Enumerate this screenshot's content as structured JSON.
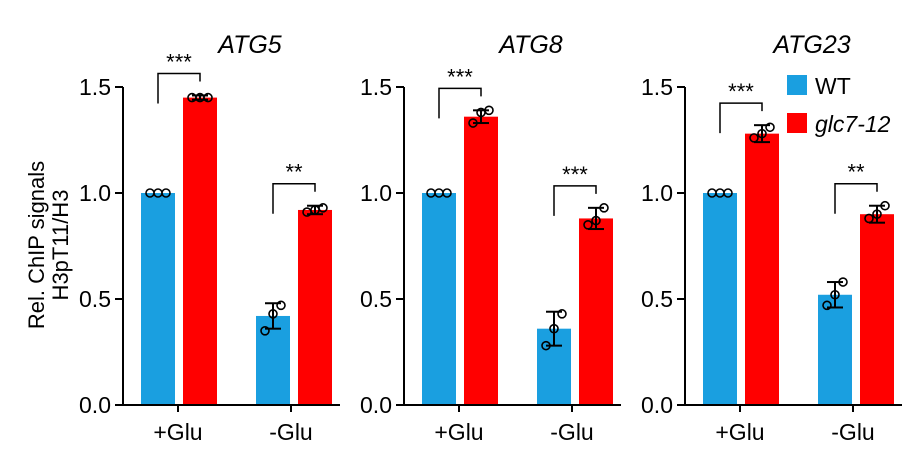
{
  "colors": {
    "WT": "#1a9fe0",
    "glc7-12": "#ff0000",
    "axis": "#000000"
  },
  "y_label_lines": [
    "Rel. ChIP signals",
    "H3pT11/H3"
  ],
  "legend": [
    {
      "name": "WT",
      "italic": false,
      "color_key": "WT"
    },
    {
      "name": "glc7-12",
      "italic": true,
      "color_key": "glc7-12"
    }
  ],
  "chart_data": [
    {
      "type": "bar",
      "title": "ATG5",
      "categories": [
        "+Glu",
        "-Glu"
      ],
      "ylim": [
        0,
        1.5
      ],
      "yticks": [
        "0.0",
        "0.5",
        "1.0",
        "1.5"
      ],
      "series": [
        {
          "name": "WT",
          "values": [
            1.0,
            0.42
          ],
          "errors": [
            0.0,
            0.06
          ],
          "points": [
            [
              1.0,
              1.0,
              1.0
            ],
            [
              0.35,
              0.43,
              0.47
            ]
          ]
        },
        {
          "name": "glc7-12",
          "values": [
            1.45,
            0.92
          ],
          "errors": [
            0.01,
            0.02
          ],
          "points": [
            [
              1.45,
              1.45,
              1.45
            ],
            [
              0.91,
              0.92,
              0.93
            ]
          ]
        }
      ],
      "significance": [
        "***",
        "**"
      ]
    },
    {
      "type": "bar",
      "title": "ATG8",
      "categories": [
        "+Glu",
        "-Glu"
      ],
      "ylim": [
        0,
        1.5
      ],
      "yticks": [
        "0.0",
        "0.5",
        "1.0",
        "1.5"
      ],
      "series": [
        {
          "name": "WT",
          "values": [
            1.0,
            0.36
          ],
          "errors": [
            0.0,
            0.08
          ],
          "points": [
            [
              1.0,
              1.0,
              1.0
            ],
            [
              0.28,
              0.36,
              0.43
            ]
          ]
        },
        {
          "name": "glc7-12",
          "values": [
            1.36,
            0.88
          ],
          "errors": [
            0.03,
            0.05
          ],
          "points": [
            [
              1.33,
              1.38,
              1.39
            ],
            [
              0.85,
              0.87,
              0.93
            ]
          ]
        }
      ],
      "significance": [
        "***",
        "***"
      ]
    },
    {
      "type": "bar",
      "title": "ATG23",
      "categories": [
        "+Glu",
        "-Glu"
      ],
      "ylim": [
        0,
        1.5
      ],
      "yticks": [
        "0.0",
        "0.5",
        "1.0",
        "1.5"
      ],
      "series": [
        {
          "name": "WT",
          "values": [
            1.0,
            0.52
          ],
          "errors": [
            0.0,
            0.06
          ],
          "points": [
            [
              1.0,
              1.0,
              1.0
            ],
            [
              0.47,
              0.52,
              0.58
            ]
          ]
        },
        {
          "name": "glc7-12",
          "values": [
            1.28,
            0.9
          ],
          "errors": [
            0.04,
            0.04
          ],
          "points": [
            [
              1.26,
              1.28,
              1.31
            ],
            [
              0.88,
              0.9,
              0.94
            ]
          ]
        }
      ],
      "significance": [
        "***",
        "**"
      ]
    }
  ]
}
